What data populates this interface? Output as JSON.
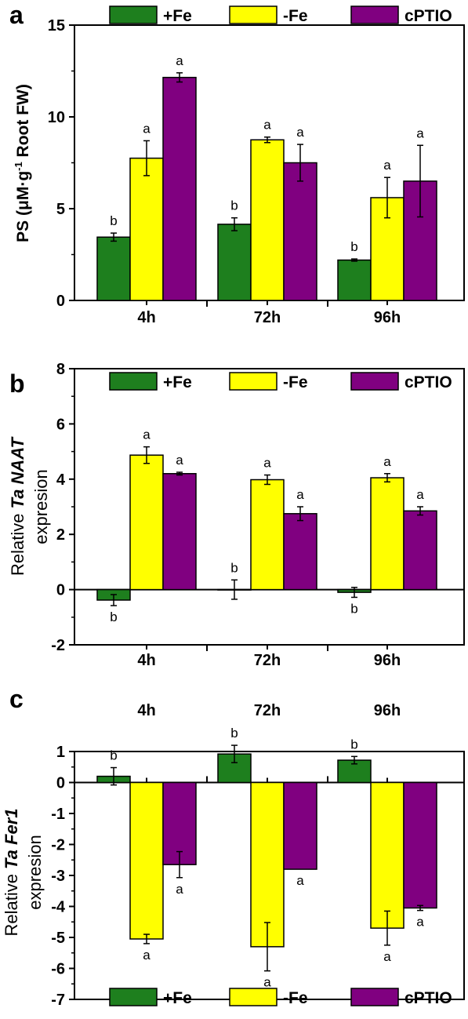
{
  "colors": {
    "fe_plus": "#1E7F1E",
    "fe_minus": "#FFFF00",
    "cptio": "#800080",
    "axis": "#000000"
  },
  "chart_data": [
    {
      "panel": "a",
      "type": "bar",
      "ylabel_main": "PS (μM·g",
      "ylabel_sup": "-1",
      "ylabel_tail": " Root FW)",
      "ylim": [
        0,
        15
      ],
      "yticks": [
        0,
        5,
        10,
        15
      ],
      "categories": [
        "4h",
        "72h",
        "96h"
      ],
      "x_axis_position": "bottom",
      "legend": {
        "placement": "top",
        "labels": [
          "+Fe",
          "-Fe",
          "cPTIO"
        ]
      },
      "series": [
        {
          "name": "+Fe",
          "values": [
            3.45,
            4.15,
            2.2
          ],
          "errors": [
            0.22,
            0.35,
            0.06
          ],
          "letters": [
            "b",
            "b",
            "b"
          ]
        },
        {
          "name": "-Fe",
          "values": [
            7.75,
            8.75,
            5.6
          ],
          "errors": [
            0.95,
            0.15,
            1.1
          ],
          "letters": [
            "a",
            "a",
            "a"
          ]
        },
        {
          "name": "cPTIO",
          "values": [
            12.15,
            7.5,
            6.5
          ],
          "errors": [
            0.25,
            1.0,
            1.95
          ],
          "letters": [
            "a",
            "a",
            "a"
          ]
        }
      ]
    },
    {
      "panel": "b",
      "type": "bar",
      "ylabel_line1_a": "Relative ",
      "ylabel_line1_b": "Ta NAAT",
      "ylabel_line2": "expresion",
      "ylim": [
        -2,
        8
      ],
      "yticks": [
        -2,
        0,
        2,
        4,
        6,
        8
      ],
      "categories": [
        "4h",
        "72h",
        "96h"
      ],
      "x_axis_position": "bottom",
      "legend": {
        "placement": "top",
        "labels": [
          "+Fe",
          "-Fe",
          "cPTIO"
        ]
      },
      "series": [
        {
          "name": "+Fe",
          "values": [
            -0.38,
            0.0,
            -0.1
          ],
          "errors": [
            0.2,
            0.35,
            0.18
          ],
          "letters": [
            "b",
            "b",
            "b"
          ]
        },
        {
          "name": "-Fe",
          "values": [
            4.87,
            3.98,
            4.05
          ],
          "errors": [
            0.3,
            0.17,
            0.15
          ],
          "letters": [
            "a",
            "a",
            "a"
          ]
        },
        {
          "name": "cPTIO",
          "values": [
            4.2,
            2.75,
            2.85
          ],
          "errors": [
            0.05,
            0.25,
            0.15
          ],
          "letters": [
            "a",
            "a",
            "a"
          ]
        }
      ]
    },
    {
      "panel": "c",
      "type": "bar",
      "ylabel_line1_a": "Relative ",
      "ylabel_line1_b": "Ta Fer1",
      "ylabel_line2": "expresion",
      "ylim": [
        -7,
        1
      ],
      "yticks": [
        -7,
        -6,
        -5,
        -4,
        -3,
        -2,
        -1,
        0,
        1
      ],
      "categories": [
        "4h",
        "72h",
        "96h"
      ],
      "x_axis_position": "top",
      "legend": {
        "placement": "bottom",
        "labels": [
          "+Fe",
          "-Fe",
          "cPTIO"
        ]
      },
      "series": [
        {
          "name": "+Fe",
          "values": [
            0.2,
            0.92,
            0.72
          ],
          "errors": [
            0.28,
            0.28,
            0.12
          ],
          "letters": [
            "b",
            "b",
            "b"
          ]
        },
        {
          "name": "-Fe",
          "values": [
            -5.05,
            -5.3,
            -4.7
          ],
          "errors": [
            0.15,
            0.78,
            0.55
          ],
          "letters": [
            "a",
            "a",
            "a"
          ]
        },
        {
          "name": "cPTIO",
          "values": [
            -2.65,
            -2.8,
            -4.05
          ],
          "errors": [
            0.42,
            0.0,
            0.08
          ],
          "letters": [
            "a",
            "a",
            "a"
          ]
        }
      ]
    }
  ]
}
